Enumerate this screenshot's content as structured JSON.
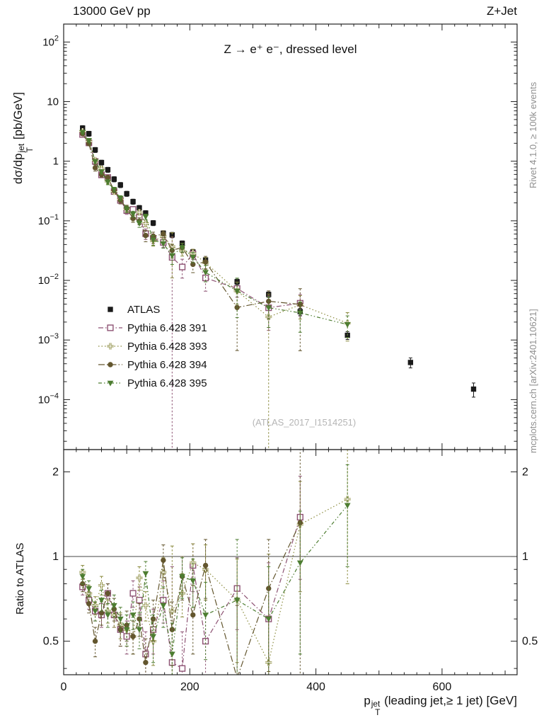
{
  "header": {
    "beam_label": "13000 GeV pp",
    "process_label": "Z+Jet"
  },
  "plot": {
    "title": "Z → e⁺ e⁻, dressed level",
    "watermark": "(ATLAS_2017_I1514251)",
    "ylabel": {
      "prefix": "dσ/dp",
      "sup": "jet",
      "sub": "T",
      "suffix": " [pb/GeV]"
    },
    "ratio_ylabel": "Ratio to ATLAS",
    "xlabel": {
      "prefix": "p",
      "sup": "jet",
      "sub": "T",
      "suffix": " (leading jet,≥ 1 jet) [GeV]"
    }
  },
  "credits": {
    "right_top": "Rivet 4.1.0, ≥ 100k events",
    "right_bottom": "mcplots.cern.ch [arXiv:2401.10621]"
  },
  "chart_data": {
    "type": "scatter",
    "title": "Z → e⁺ e⁻, dressed level",
    "xlabel": "pT jet (leading jet, ≥ 1 jet) [GeV]",
    "ylabel": "dσ/dpT jet [pb/GeV]",
    "ratio_label": "Ratio to ATLAS",
    "yscale_main": "log",
    "yscale_ratio": "log",
    "xlim": [
      0,
      719
    ],
    "x_major_ticks": [
      0,
      200,
      400,
      600
    ],
    "x_minor_step": 20,
    "ylim_main": [
      1.45e-05,
      200
    ],
    "y_decades": [
      -4,
      -3,
      -2,
      -1,
      0,
      1,
      2
    ],
    "ylim_ratio": [
      0.38,
      2.4
    ],
    "ratio_ticks": [
      0.5,
      1,
      2
    ],
    "ratio_minor_ticks": [
      0.4,
      0.6,
      0.7,
      0.8,
      0.9
    ],
    "series": [
      {
        "label": "ATLAS",
        "type": "data",
        "color": "#1a1a1a",
        "marker": "square-filled",
        "line": "none",
        "dash": "",
        "x": [
          30,
          40,
          50,
          60,
          70,
          80,
          90,
          100,
          110,
          120,
          130,
          142,
          158,
          172,
          188,
          205,
          225,
          275,
          325,
          375,
          450,
          550,
          650
        ],
        "y": [
          3.6,
          2.9,
          1.55,
          0.95,
          0.72,
          0.5,
          0.4,
          0.285,
          0.21,
          0.165,
          0.135,
          0.092,
          0.062,
          0.058,
          0.042,
          0.03,
          0.022,
          0.0095,
          0.0058,
          0.003,
          0.0012,
          0.00042,
          0.00015
        ],
        "yerr": [
          0.35,
          0.28,
          0.15,
          0.09,
          0.07,
          0.05,
          0.04,
          0.028,
          0.021,
          0.016,
          0.013,
          0.009,
          0.006,
          0.006,
          0.004,
          0.003,
          0.0022,
          0.001,
          0.0006,
          0.0004,
          0.00018,
          8e-05,
          4e-05
        ]
      },
      {
        "label": "Pythia 6.428 391",
        "type": "mc",
        "color": "#8d5273",
        "marker": "square-open",
        "line": "dashdot",
        "dash": "7 3 1.5 3",
        "x": [
          30,
          40,
          50,
          60,
          70,
          80,
          90,
          100,
          110,
          120,
          130,
          142,
          158,
          172,
          188,
          205,
          225,
          275,
          325,
          375
        ],
        "ratio": [
          0.78,
          0.7,
          0.64,
          0.62,
          0.74,
          0.62,
          0.55,
          0.52,
          0.74,
          0.7,
          0.45,
          0.55,
          0.7,
          0.42,
          0.4,
          0.93,
          0.5,
          0.77,
          0.6,
          1.38
        ],
        "ratio_err": [
          0.05,
          0.05,
          0.05,
          0.06,
          0.06,
          0.06,
          0.07,
          0.07,
          0.08,
          0.08,
          0.09,
          0.1,
          0.12,
          0.5,
          0.14,
          0.18,
          0.2,
          0.22,
          0.35,
          0.55
        ]
      },
      {
        "label": "Pythia 6.428 393",
        "type": "mc",
        "color": "#8a8a3c",
        "marker": "cross-open",
        "line": "dot",
        "dash": "1.5 3",
        "x": [
          30,
          40,
          50,
          60,
          70,
          80,
          90,
          100,
          110,
          120,
          130,
          142,
          158,
          172,
          188,
          205,
          225,
          275,
          325,
          375,
          450
        ],
        "ratio": [
          0.88,
          0.74,
          0.67,
          0.79,
          0.64,
          0.62,
          0.57,
          0.55,
          0.52,
          0.84,
          0.67,
          0.5,
          0.88,
          0.64,
          0.74,
          0.95,
          0.9,
          0.7,
          0.42,
          1.3,
          1.6
        ],
        "ratio_err": [
          0.05,
          0.05,
          0.05,
          0.06,
          0.06,
          0.06,
          0.06,
          0.07,
          0.07,
          0.08,
          0.08,
          0.09,
          0.11,
          0.45,
          0.13,
          0.16,
          0.2,
          0.28,
          0.6,
          0.55,
          0.8
        ]
      },
      {
        "label": "Pythia 6.428 394",
        "type": "mc",
        "color": "#63562e",
        "marker": "circle-filled",
        "line": "dashdot",
        "dash": "9 3 1.5 3",
        "x": [
          30,
          40,
          50,
          60,
          70,
          80,
          90,
          100,
          110,
          120,
          130,
          142,
          158,
          172,
          188,
          205,
          225,
          275,
          325,
          375
        ],
        "ratio": [
          0.8,
          0.68,
          0.5,
          0.63,
          0.74,
          0.65,
          0.55,
          0.57,
          0.52,
          0.6,
          0.42,
          0.6,
          0.97,
          0.55,
          0.85,
          0.62,
          0.93,
          0.37,
          0.77,
          1.32
        ],
        "ratio_err": [
          0.05,
          0.05,
          0.06,
          0.06,
          0.06,
          0.06,
          0.07,
          0.07,
          0.07,
          0.08,
          0.09,
          0.1,
          0.13,
          0.14,
          0.15,
          0.17,
          0.22,
          0.3,
          0.38,
          1.1
        ]
      },
      {
        "label": "Pythia 6.428 395",
        "type": "mc",
        "color": "#4d7d31",
        "marker": "triangle-down-filled",
        "line": "dashdotdot",
        "dash": "5 3 1.5 3 1.5 3",
        "x": [
          30,
          40,
          50,
          60,
          70,
          80,
          90,
          100,
          110,
          120,
          130,
          142,
          158,
          172,
          188,
          205,
          225,
          275,
          325,
          375,
          450
        ],
        "ratio": [
          0.85,
          0.77,
          0.64,
          0.7,
          0.62,
          0.67,
          0.6,
          0.55,
          0.62,
          0.55,
          0.87,
          0.52,
          0.67,
          0.45,
          0.85,
          0.82,
          0.62,
          0.7,
          0.6,
          0.95,
          1.52
        ],
        "ratio_err": [
          0.05,
          0.05,
          0.05,
          0.06,
          0.06,
          0.06,
          0.06,
          0.07,
          0.07,
          0.08,
          0.09,
          0.1,
          0.11,
          0.13,
          0.14,
          0.16,
          0.19,
          0.45,
          0.32,
          0.5,
          0.6
        ]
      }
    ]
  }
}
